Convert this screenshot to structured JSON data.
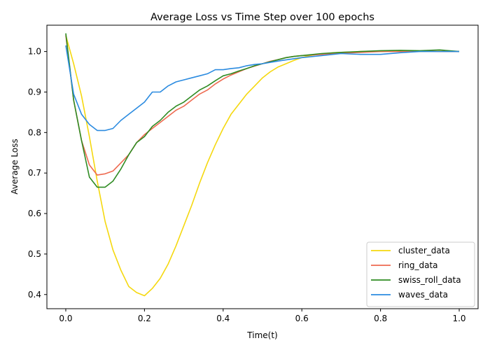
{
  "chart_data": {
    "type": "line",
    "title": "Average Loss vs Time Step over 100 epochs",
    "xlabel": "Time(t)",
    "ylabel": "Average Loss",
    "xlim": [
      -0.048,
      1.048
    ],
    "ylim": [
      0.365,
      1.065
    ],
    "xticks": [
      0.0,
      0.2,
      0.4,
      0.6,
      0.8,
      1.0
    ],
    "xtick_labels": [
      "0.0",
      "0.2",
      "0.4",
      "0.6",
      "0.8",
      "1.0"
    ],
    "yticks": [
      0.4,
      0.5,
      0.6,
      0.7,
      0.8,
      0.9,
      1.0
    ],
    "ytick_labels": [
      "0.4",
      "0.5",
      "0.6",
      "0.7",
      "0.8",
      "0.9",
      "1.0"
    ],
    "grid": false,
    "legend_position": "lower-right",
    "series": [
      {
        "name": "cluster_data",
        "color": "#f5d80f",
        "x": [
          0.0,
          0.02,
          0.04,
          0.06,
          0.08,
          0.1,
          0.12,
          0.14,
          0.16,
          0.18,
          0.2,
          0.22,
          0.24,
          0.26,
          0.28,
          0.3,
          0.32,
          0.34,
          0.36,
          0.38,
          0.4,
          0.42,
          0.44,
          0.46,
          0.48,
          0.5,
          0.52,
          0.54,
          0.56,
          0.58,
          0.6,
          0.62,
          0.64,
          0.66,
          0.68,
          0.7,
          0.75,
          0.8,
          0.85,
          0.9,
          0.95,
          1.0
        ],
        "y": [
          1.04,
          0.97,
          0.89,
          0.79,
          0.68,
          0.58,
          0.51,
          0.46,
          0.42,
          0.405,
          0.397,
          0.415,
          0.44,
          0.475,
          0.52,
          0.57,
          0.62,
          0.675,
          0.725,
          0.77,
          0.81,
          0.845,
          0.87,
          0.895,
          0.915,
          0.935,
          0.95,
          0.962,
          0.97,
          0.978,
          0.985,
          0.99,
          0.993,
          0.995,
          0.997,
          0.998,
          1.0,
          1.0,
          1.002,
          1.0,
          1.001,
          1.0
        ]
      },
      {
        "name": "ring_data",
        "color": "#ee6a50",
        "x": [
          0.0,
          0.02,
          0.04,
          0.06,
          0.08,
          0.1,
          0.12,
          0.14,
          0.16,
          0.18,
          0.2,
          0.22,
          0.24,
          0.26,
          0.28,
          0.3,
          0.32,
          0.34,
          0.36,
          0.38,
          0.4,
          0.42,
          0.44,
          0.46,
          0.48,
          0.5,
          0.52,
          0.54,
          0.56,
          0.58,
          0.6,
          0.65,
          0.7,
          0.75,
          0.8,
          0.85,
          0.9,
          0.95,
          1.0
        ],
        "y": [
          1.04,
          0.88,
          0.78,
          0.72,
          0.695,
          0.698,
          0.705,
          0.725,
          0.745,
          0.775,
          0.795,
          0.81,
          0.825,
          0.84,
          0.855,
          0.865,
          0.88,
          0.895,
          0.905,
          0.92,
          0.932,
          0.942,
          0.95,
          0.958,
          0.964,
          0.97,
          0.976,
          0.98,
          0.985,
          0.988,
          0.99,
          0.993,
          0.996,
          0.998,
          1.0,
          1.0,
          1.001,
          1.0,
          1.0
        ]
      },
      {
        "name": "swiss_roll_data",
        "color": "#2e8b22",
        "x": [
          0.0,
          0.02,
          0.04,
          0.06,
          0.08,
          0.1,
          0.12,
          0.14,
          0.16,
          0.18,
          0.2,
          0.22,
          0.24,
          0.26,
          0.28,
          0.3,
          0.32,
          0.34,
          0.36,
          0.38,
          0.4,
          0.42,
          0.44,
          0.46,
          0.48,
          0.5,
          0.52,
          0.54,
          0.56,
          0.58,
          0.6,
          0.65,
          0.7,
          0.75,
          0.8,
          0.85,
          0.9,
          0.95,
          1.0
        ],
        "y": [
          1.045,
          0.88,
          0.78,
          0.69,
          0.665,
          0.665,
          0.68,
          0.71,
          0.745,
          0.775,
          0.79,
          0.815,
          0.83,
          0.85,
          0.865,
          0.875,
          0.89,
          0.905,
          0.915,
          0.928,
          0.94,
          0.945,
          0.952,
          0.958,
          0.965,
          0.97,
          0.975,
          0.98,
          0.985,
          0.988,
          0.99,
          0.995,
          0.998,
          1.0,
          1.002,
          1.003,
          1.002,
          1.004,
          1.0
        ]
      },
      {
        "name": "waves_data",
        "color": "#2b8be0",
        "x": [
          0.0,
          0.02,
          0.04,
          0.06,
          0.08,
          0.1,
          0.12,
          0.14,
          0.16,
          0.18,
          0.2,
          0.22,
          0.24,
          0.26,
          0.28,
          0.3,
          0.32,
          0.34,
          0.36,
          0.38,
          0.4,
          0.42,
          0.44,
          0.46,
          0.48,
          0.5,
          0.55,
          0.6,
          0.65,
          0.7,
          0.75,
          0.8,
          0.85,
          0.9,
          0.95,
          1.0
        ],
        "y": [
          1.015,
          0.895,
          0.845,
          0.82,
          0.805,
          0.805,
          0.81,
          0.83,
          0.845,
          0.86,
          0.875,
          0.9,
          0.9,
          0.915,
          0.925,
          0.93,
          0.935,
          0.94,
          0.945,
          0.955,
          0.955,
          0.958,
          0.96,
          0.965,
          0.968,
          0.97,
          0.978,
          0.985,
          0.99,
          0.995,
          0.993,
          0.993,
          0.997,
          1.0,
          1.0,
          1.0
        ]
      }
    ]
  }
}
